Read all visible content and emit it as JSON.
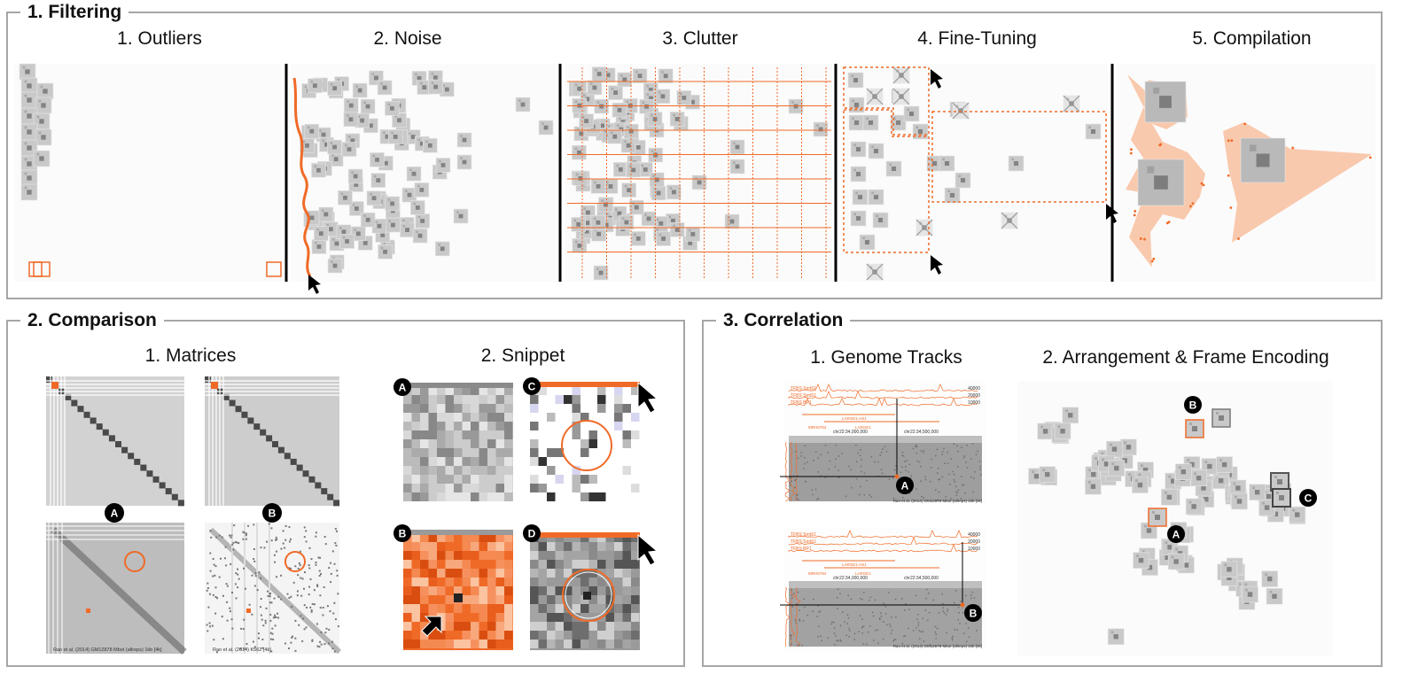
{
  "filtering": {
    "title": "1. Filtering",
    "steps": [
      "1. Outliers",
      "2. Noise",
      "3. Clutter",
      "4. Fine-Tuning",
      "5. Compilation"
    ]
  },
  "comparison": {
    "title": "2. Comparison",
    "sections": [
      "1. Matrices",
      "2. Snippet"
    ],
    "matrix_labels": [
      "A",
      "B"
    ],
    "matrix_captions": [
      "Rao et al. (2014) GM12878 MboI (allreps) 1kb [4k]",
      "Rao et al. (2014) K562 [4k]"
    ],
    "snippet_labels": [
      "A",
      "C",
      "B",
      "D"
    ]
  },
  "correlation": {
    "title": "3. Correlation",
    "sections": [
      "1. Genome Tracks",
      "2. Arrangement & Frame Encoding"
    ],
    "track_labels": [
      "TFBS SmtS1",
      "TFBS SmtS1",
      "TFBS BP1"
    ],
    "coords_top": [
      "chr22:34,000,000",
      "chr22:34,500,000"
    ],
    "coords_bottom": [
      "chr22:34,000,000",
      "chr22:34,500,000"
    ],
    "track_values": [
      "40000",
      "20000",
      "10000"
    ],
    "gene_labels": [
      "LARGE1-AS1",
      "MRH5784",
      "LARGE1"
    ],
    "matrix_caption": "Rao et al. (2014) GM12878 MboI (allreps) 1kb [4k]",
    "point_labels": [
      "A",
      "B"
    ],
    "arrangement_labels": [
      "B",
      "C",
      "A"
    ]
  },
  "colors": {
    "accent": "#f06a27",
    "border": "#a6a6a6",
    "light_fill": "#f9c9ad"
  }
}
